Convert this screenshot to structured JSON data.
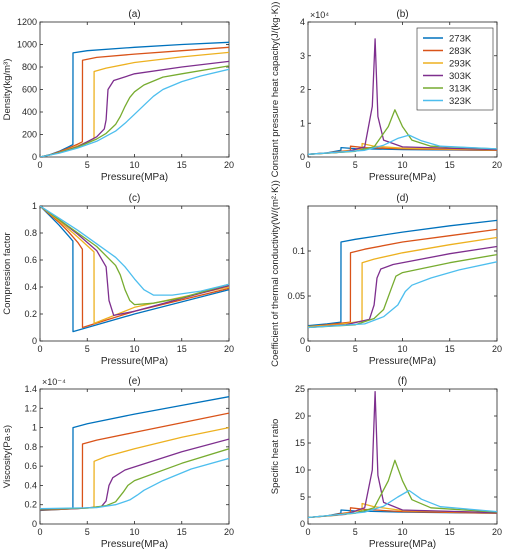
{
  "colors": [
    "#0072BD",
    "#D95319",
    "#EDB120",
    "#7E2F8E",
    "#77AC30",
    "#4DBEEE"
  ],
  "legend": {
    "entries": [
      "273K",
      "283K",
      "293K",
      "303K",
      "313K",
      "323K"
    ],
    "position": "top-right",
    "panel": "b"
  },
  "chart_data": [
    {
      "panel": "a",
      "type": "line",
      "title": "(a)",
      "xlabel": "Pressure(MPa)",
      "ylabel": "Density(kg/m³)",
      "xlim": [
        0,
        20
      ],
      "ylim": [
        0,
        1200
      ],
      "xticks": [
        0,
        5,
        10,
        15,
        20
      ],
      "xtick_labels": [
        "0",
        "5",
        "10",
        "15",
        "20"
      ],
      "yticks": [
        0,
        200,
        400,
        600,
        800,
        1000,
        1200
      ],
      "ytick_labels": [
        "0",
        "200",
        "400",
        "600",
        "800",
        "1000",
        "1200"
      ],
      "exponent_label": "",
      "series": [
        {
          "name": "273K",
          "x": [
            0,
            1,
            2,
            3,
            3.48,
            3.49,
            5,
            10,
            15,
            20
          ],
          "y": [
            0,
            20,
            50,
            90,
            110,
            925,
            945,
            975,
            1000,
            1020
          ]
        },
        {
          "name": "283K",
          "x": [
            0,
            1,
            2,
            3,
            4,
            4.49,
            4.5,
            6,
            10,
            15,
            20
          ],
          "y": [
            0,
            18,
            45,
            78,
            115,
            135,
            860,
            885,
            915,
            945,
            975
          ]
        },
        {
          "name": "293K",
          "x": [
            0,
            1,
            2,
            3,
            4,
            5,
            5.71,
            5.72,
            7,
            10,
            15,
            20
          ],
          "y": [
            0,
            17,
            40,
            68,
            100,
            135,
            165,
            760,
            790,
            840,
            890,
            930
          ]
        },
        {
          "name": "303K",
          "x": [
            0,
            2,
            4,
            6,
            6.8,
            7.0,
            7.2,
            7.8,
            10,
            15,
            20
          ],
          "y": [
            0,
            38,
            92,
            180,
            250,
            330,
            600,
            680,
            740,
            800,
            850
          ]
        },
        {
          "name": "313K",
          "x": [
            0,
            2,
            4,
            6,
            7,
            8,
            8.5,
            9,
            9.5,
            10,
            11,
            13,
            15,
            20
          ],
          "y": [
            0,
            36,
            88,
            160,
            210,
            290,
            360,
            450,
            530,
            580,
            640,
            710,
            740,
            810
          ]
        },
        {
          "name": "323K",
          "x": [
            0,
            2,
            4,
            6,
            8,
            9,
            10,
            11,
            12,
            13,
            15,
            17,
            20
          ],
          "y": [
            0,
            34,
            80,
            140,
            230,
            300,
            380,
            460,
            540,
            600,
            670,
            720,
            780
          ]
        }
      ]
    },
    {
      "panel": "b",
      "type": "line",
      "title": "(b)",
      "xlabel": "Pressure(MPa)",
      "ylabel": "Constant pressure heat capacity(J/(kg·K))",
      "xlim": [
        0,
        20
      ],
      "ylim": [
        0,
        4
      ],
      "xticks": [
        0,
        5,
        10,
        15,
        20
      ],
      "xtick_labels": [
        "0",
        "5",
        "10",
        "15",
        "20"
      ],
      "yticks": [
        0,
        1,
        2,
        3,
        4
      ],
      "ytick_labels": [
        "0",
        "1",
        "2",
        "3",
        "4"
      ],
      "exponent_label": "×10⁴",
      "series": [
        {
          "name": "273K",
          "x": [
            0,
            2,
            3.48,
            3.49,
            5,
            10,
            20
          ],
          "y": [
            0.08,
            0.12,
            0.2,
            0.28,
            0.25,
            0.22,
            0.2
          ]
        },
        {
          "name": "283K",
          "x": [
            0,
            2,
            4.49,
            4.5,
            6,
            10,
            20
          ],
          "y": [
            0.08,
            0.12,
            0.2,
            0.32,
            0.28,
            0.24,
            0.2
          ]
        },
        {
          "name": "293K",
          "x": [
            0,
            3,
            5.71,
            5.72,
            7,
            10,
            20
          ],
          "y": [
            0.08,
            0.13,
            0.25,
            0.4,
            0.32,
            0.26,
            0.21
          ]
        },
        {
          "name": "303K",
          "x": [
            0,
            4,
            6.0,
            6.8,
            7.1,
            7.4,
            8.0,
            10,
            20
          ],
          "y": [
            0.08,
            0.15,
            0.3,
            1.5,
            3.5,
            1.2,
            0.5,
            0.3,
            0.22
          ]
        },
        {
          "name": "313K",
          "x": [
            0,
            5,
            7,
            8.5,
            9.2,
            10,
            11,
            13,
            20
          ],
          "y": [
            0.08,
            0.17,
            0.3,
            0.9,
            1.4,
            0.9,
            0.5,
            0.32,
            0.24
          ]
        },
        {
          "name": "323K",
          "x": [
            0,
            6,
            8,
            9.5,
            10.7,
            12,
            14,
            20
          ],
          "y": [
            0.08,
            0.2,
            0.35,
            0.55,
            0.65,
            0.48,
            0.32,
            0.24
          ]
        }
      ]
    },
    {
      "panel": "c",
      "type": "line",
      "title": "(c)",
      "xlabel": "Pressure(MPa)",
      "ylabel": "Compression factor",
      "xlim": [
        0,
        20
      ],
      "ylim": [
        0,
        1
      ],
      "xticks": [
        0,
        5,
        10,
        15,
        20
      ],
      "xtick_labels": [
        "0",
        "5",
        "10",
        "15",
        "20"
      ],
      "yticks": [
        0,
        0.2,
        0.4,
        0.6,
        0.8,
        1
      ],
      "ytick_labels": [
        "0",
        "0.2",
        "0.4",
        "0.6",
        "0.8",
        "1"
      ],
      "exponent_label": "",
      "series": [
        {
          "name": "273K",
          "x": [
            0,
            1,
            2,
            3,
            3.48,
            3.49,
            10,
            20
          ],
          "y": [
            1,
            0.93,
            0.86,
            0.78,
            0.74,
            0.07,
            0.2,
            0.38
          ]
        },
        {
          "name": "283K",
          "x": [
            0,
            1,
            2,
            3,
            4,
            4.49,
            4.5,
            10,
            20
          ],
          "y": [
            1,
            0.94,
            0.88,
            0.81,
            0.73,
            0.68,
            0.1,
            0.22,
            0.39
          ]
        },
        {
          "name": "293K",
          "x": [
            0,
            2,
            4,
            5.71,
            5.72,
            10,
            20
          ],
          "y": [
            1,
            0.89,
            0.77,
            0.66,
            0.13,
            0.25,
            0.4
          ]
        },
        {
          "name": "303K",
          "x": [
            0,
            2,
            4,
            6,
            7.0,
            7.3,
            7.8,
            10,
            20
          ],
          "y": [
            1,
            0.9,
            0.79,
            0.67,
            0.55,
            0.3,
            0.19,
            0.22,
            0.41
          ]
        },
        {
          "name": "313K",
          "x": [
            0,
            2,
            4,
            6,
            8,
            8.5,
            9,
            9.5,
            10,
            12,
            15,
            20
          ],
          "y": [
            1,
            0.9,
            0.8,
            0.7,
            0.56,
            0.49,
            0.38,
            0.3,
            0.27,
            0.28,
            0.32,
            0.42
          ]
        },
        {
          "name": "323K",
          "x": [
            0,
            2,
            4,
            6,
            8,
            9,
            10,
            11,
            12,
            14,
            17,
            20
          ],
          "y": [
            1,
            0.91,
            0.82,
            0.72,
            0.62,
            0.55,
            0.46,
            0.38,
            0.34,
            0.34,
            0.37,
            0.42
          ]
        }
      ]
    },
    {
      "panel": "d",
      "type": "line",
      "title": "(d)",
      "xlabel": "Pressure(MPa)",
      "ylabel": "Coefficient of thermal conductivity(W/(m²·K))",
      "xlim": [
        0,
        20
      ],
      "ylim": [
        0,
        0.15
      ],
      "xticks": [
        0,
        5,
        10,
        15,
        20
      ],
      "xtick_labels": [
        "0",
        "5",
        "10",
        "15",
        "20"
      ],
      "yticks": [
        0,
        0.05,
        0.1
      ],
      "ytick_labels": [
        "0",
        "0.05",
        "0.1"
      ],
      "exponent_label": "",
      "series": [
        {
          "name": "273K",
          "x": [
            0,
            2,
            3.48,
            3.49,
            5,
            10,
            15,
            20
          ],
          "y": [
            0.017,
            0.019,
            0.021,
            0.11,
            0.113,
            0.121,
            0.128,
            0.134
          ]
        },
        {
          "name": "283K",
          "x": [
            0,
            2,
            4.49,
            4.5,
            6,
            10,
            15,
            20
          ],
          "y": [
            0.016,
            0.018,
            0.021,
            0.098,
            0.102,
            0.11,
            0.117,
            0.124
          ]
        },
        {
          "name": "293K",
          "x": [
            0,
            3,
            5.71,
            5.72,
            7,
            10,
            15,
            20
          ],
          "y": [
            0.016,
            0.018,
            0.022,
            0.087,
            0.091,
            0.098,
            0.107,
            0.115
          ]
        },
        {
          "name": "303K",
          "x": [
            0,
            4,
            6.5,
            7.0,
            7.3,
            7.7,
            9,
            15,
            20
          ],
          "y": [
            0.015,
            0.018,
            0.024,
            0.04,
            0.07,
            0.08,
            0.085,
            0.097,
            0.105
          ]
        },
        {
          "name": "313K",
          "x": [
            0,
            5,
            7,
            8,
            8.8,
            9.3,
            10,
            15,
            20
          ],
          "y": [
            0.015,
            0.018,
            0.025,
            0.035,
            0.058,
            0.072,
            0.076,
            0.087,
            0.096
          ]
        },
        {
          "name": "323K",
          "x": [
            0,
            6,
            8,
            9.5,
            10.3,
            11,
            13,
            16,
            20
          ],
          "y": [
            0.015,
            0.019,
            0.027,
            0.04,
            0.055,
            0.062,
            0.07,
            0.079,
            0.088
          ]
        }
      ]
    },
    {
      "panel": "e",
      "type": "line",
      "title": "(e)",
      "xlabel": "Pressure(MPa)",
      "ylabel": "Viscosity(Pa·s)",
      "xlim": [
        0,
        20
      ],
      "ylim": [
        0,
        1.4
      ],
      "xticks": [
        0,
        5,
        10,
        15,
        20
      ],
      "xtick_labels": [
        "0",
        "5",
        "10",
        "15",
        "20"
      ],
      "yticks": [
        0,
        0.2,
        0.4,
        0.6,
        0.8,
        1,
        1.2,
        1.4
      ],
      "ytick_labels": [
        "0",
        "0.2",
        "0.4",
        "0.6",
        "0.8",
        "1",
        "1.2",
        "1.4"
      ],
      "exponent_label": "×10⁻⁴",
      "series": [
        {
          "name": "273K",
          "x": [
            0,
            2,
            3.48,
            3.49,
            5,
            10,
            15,
            20
          ],
          "y": [
            0.14,
            0.15,
            0.16,
            1.0,
            1.04,
            1.14,
            1.23,
            1.32
          ]
        },
        {
          "name": "283K",
          "x": [
            0,
            2,
            4.49,
            4.5,
            6,
            10,
            15,
            20
          ],
          "y": [
            0.145,
            0.15,
            0.165,
            0.83,
            0.87,
            0.95,
            1.05,
            1.15
          ]
        },
        {
          "name": "293K",
          "x": [
            0,
            3,
            5.71,
            5.72,
            7,
            10,
            15,
            20
          ],
          "y": [
            0.15,
            0.155,
            0.17,
            0.65,
            0.7,
            0.78,
            0.9,
            1.0
          ]
        },
        {
          "name": "303K",
          "x": [
            0,
            4,
            6.5,
            7.0,
            7.3,
            7.7,
            9,
            15,
            20
          ],
          "y": [
            0.15,
            0.16,
            0.18,
            0.24,
            0.4,
            0.48,
            0.56,
            0.75,
            0.88
          ]
        },
        {
          "name": "313K",
          "x": [
            0,
            5,
            7,
            8,
            8.8,
            9.3,
            10,
            15,
            20
          ],
          "y": [
            0.155,
            0.165,
            0.19,
            0.23,
            0.33,
            0.4,
            0.45,
            0.63,
            0.78
          ]
        },
        {
          "name": "323K",
          "x": [
            0,
            6,
            8,
            9.5,
            10.3,
            11,
            13,
            16,
            20
          ],
          "y": [
            0.16,
            0.17,
            0.2,
            0.25,
            0.3,
            0.35,
            0.45,
            0.57,
            0.68
          ]
        }
      ]
    },
    {
      "panel": "f",
      "type": "line",
      "title": "(f)",
      "xlabel": "Pressure(MPa)",
      "ylabel": "Specific heat ratio",
      "xlim": [
        0,
        20
      ],
      "ylim": [
        0,
        25
      ],
      "xticks": [
        0,
        5,
        10,
        15,
        20
      ],
      "xtick_labels": [
        "0",
        "5",
        "10",
        "15",
        "20"
      ],
      "yticks": [
        0,
        5,
        10,
        15,
        20,
        25
      ],
      "ytick_labels": [
        "0",
        "5",
        "10",
        "15",
        "20",
        "25"
      ],
      "exponent_label": "",
      "series": [
        {
          "name": "273K",
          "x": [
            0,
            2,
            3.48,
            3.49,
            5,
            10,
            20
          ],
          "y": [
            1.2,
            1.5,
            2.0,
            2.6,
            2.4,
            2.2,
            2.0
          ]
        },
        {
          "name": "283K",
          "x": [
            0,
            2,
            4.49,
            4.5,
            6,
            10,
            20
          ],
          "y": [
            1.2,
            1.5,
            2.2,
            3.0,
            2.7,
            2.3,
            2.0
          ]
        },
        {
          "name": "293K",
          "x": [
            0,
            3,
            5.71,
            5.72,
            7,
            10,
            20
          ],
          "y": [
            1.2,
            1.6,
            2.6,
            3.8,
            3.2,
            2.5,
            2.1
          ]
        },
        {
          "name": "303K",
          "x": [
            0,
            4,
            6.0,
            6.8,
            7.1,
            7.4,
            8.0,
            10,
            20
          ],
          "y": [
            1.2,
            1.8,
            3.0,
            10,
            24.5,
            9,
            4,
            2.6,
            2.1
          ]
        },
        {
          "name": "313K",
          "x": [
            0,
            5,
            7,
            8.5,
            9.2,
            10,
            11,
            13,
            20
          ],
          "y": [
            1.2,
            2.0,
            3.0,
            8,
            11.8,
            8,
            4.5,
            3.0,
            2.2
          ]
        },
        {
          "name": "323K",
          "x": [
            0,
            6,
            8,
            9.5,
            10.7,
            12,
            14,
            20
          ],
          "y": [
            1.2,
            2.2,
            3.3,
            5,
            6.2,
            4.6,
            3.2,
            2.3
          ]
        }
      ]
    }
  ]
}
